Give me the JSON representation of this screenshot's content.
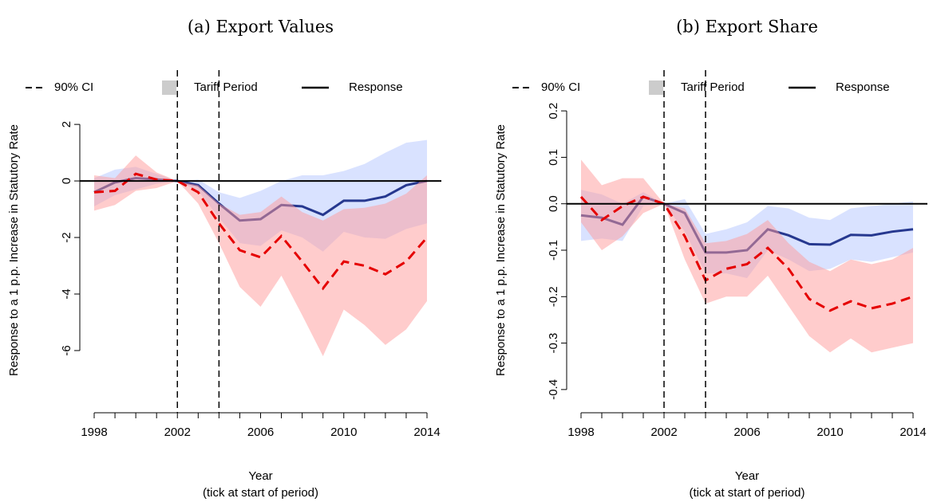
{
  "chart_data": [
    {
      "type": "line",
      "title": "(a) Export Values",
      "ylabel": "Response to a 1 p.p. Increase in Statutory Rate",
      "xlabel": "Year",
      "xlabel_note": "(tick at start of period)",
      "x": [
        1998,
        1999,
        2000,
        2001,
        2002,
        2003,
        2004,
        2005,
        2006,
        2007,
        2008,
        2009,
        2010,
        2011,
        2012,
        2013,
        2014
      ],
      "xlim": [
        1998,
        2014
      ],
      "xticks": [
        1998,
        2002,
        2006,
        2010,
        2014
      ],
      "xminorticks": [
        1998,
        1999,
        2000,
        2001,
        2002,
        2003,
        2004,
        2005,
        2006,
        2007,
        2008,
        2009,
        2010,
        2011,
        2012,
        2013,
        2014
      ],
      "ylim": [
        -8.2,
        3.3
      ],
      "yticks": [
        -6,
        -4,
        -2,
        0,
        2
      ],
      "hline": 0,
      "vlines": [
        2002,
        2004
      ],
      "legend": {
        "position": "top",
        "items": [
          "90% CI",
          "Tariff Period",
          "Response"
        ]
      },
      "series": [
        {
          "color": "#26388f",
          "band_color": "#b3c6ff",
          "dash": false,
          "values": [
            -0.4,
            -0.05,
            0.1,
            0.05,
            0,
            -0.15,
            -0.8,
            -1.4,
            -1.35,
            -0.85,
            -0.9,
            -1.2,
            -0.7,
            -0.7,
            -0.55,
            -0.15,
            0
          ],
          "upper": [
            0.1,
            0.4,
            0.5,
            0.25,
            0,
            0.05,
            -0.4,
            -0.6,
            -0.35,
            0.0,
            0.2,
            0.2,
            0.35,
            0.6,
            1.0,
            1.35,
            1.45
          ],
          "lower": [
            -0.9,
            -0.5,
            -0.3,
            -0.1,
            0,
            -0.35,
            -1.3,
            -2.2,
            -2.3,
            -1.75,
            -2.0,
            -2.5,
            -1.8,
            -2.0,
            -2.05,
            -1.7,
            -1.5
          ]
        },
        {
          "color": "#e50000",
          "band_color": "#ff9999",
          "dash": true,
          "values": [
            -0.4,
            -0.35,
            0.25,
            0.05,
            0,
            -0.4,
            -1.5,
            -2.45,
            -2.7,
            -1.95,
            -2.85,
            -3.8,
            -2.85,
            -3.0,
            -3.3,
            -2.85,
            -2.0
          ],
          "upper": [
            0.2,
            0.1,
            0.9,
            0.3,
            0,
            -0.15,
            -0.8,
            -1.2,
            -1.1,
            -0.55,
            -1.1,
            -1.4,
            -1.0,
            -0.95,
            -0.8,
            -0.45,
            0.2
          ],
          "lower": [
            -1.05,
            -0.85,
            -0.35,
            -0.25,
            0,
            -0.8,
            -2.2,
            -3.75,
            -4.45,
            -3.35,
            -4.75,
            -6.2,
            -4.55,
            -5.1,
            -5.8,
            -5.25,
            -4.25
          ]
        }
      ]
    },
    {
      "type": "line",
      "title": "(b) Export Share",
      "ylabel": "Response to a 1 p.p. Increase in Statutory Rate",
      "xlabel": "Year",
      "xlabel_note": "(tick at start of period)",
      "x": [
        1998,
        1999,
        2000,
        2001,
        2002,
        2003,
        2004,
        2005,
        2006,
        2007,
        2008,
        2009,
        2010,
        2011,
        2012,
        2013,
        2014
      ],
      "xlim": [
        1998,
        2014
      ],
      "xticks": [
        1998,
        2002,
        2006,
        2010,
        2014
      ],
      "xminorticks": [
        1998,
        1999,
        2000,
        2001,
        2002,
        2003,
        2004,
        2005,
        2006,
        2007,
        2008,
        2009,
        2010,
        2011,
        2012,
        2013,
        2014
      ],
      "ylim": [
        -0.45,
        0.25
      ],
      "yticks": [
        -0.4,
        -0.3,
        -0.2,
        -0.1,
        {
          "value": 0,
          "label": "0.0"
        },
        0.1,
        0.2
      ],
      "hline": 0,
      "vlines": [
        2002,
        2004
      ],
      "legend": {
        "position": "top",
        "items": [
          "90% CI",
          "Tariff Period",
          "Response"
        ]
      },
      "series": [
        {
          "color": "#26388f",
          "band_color": "#b3c6ff",
          "dash": false,
          "values": [
            -0.025,
            -0.03,
            -0.045,
            0.015,
            0,
            -0.02,
            -0.105,
            -0.105,
            -0.1,
            -0.055,
            -0.068,
            -0.087,
            -0.088,
            -0.067,
            -0.068,
            -0.06,
            -0.055
          ],
          "upper": [
            0.03,
            0.02,
            0.0,
            0.025,
            0,
            0.01,
            -0.065,
            -0.055,
            -0.04,
            -0.005,
            -0.01,
            -0.03,
            -0.035,
            -0.01,
            -0.005,
            0.0,
            0.005
          ],
          "lower": [
            -0.08,
            -0.075,
            -0.08,
            -0.005,
            0,
            -0.06,
            -0.15,
            -0.15,
            -0.16,
            -0.1,
            -0.12,
            -0.145,
            -0.14,
            -0.12,
            -0.125,
            -0.115,
            -0.105
          ]
        },
        {
          "color": "#e50000",
          "band_color": "#ff9999",
          "dash": true,
          "values": [
            0.015,
            -0.035,
            -0.005,
            0.015,
            0,
            -0.07,
            -0.165,
            -0.14,
            -0.13,
            -0.095,
            -0.14,
            -0.205,
            -0.23,
            -0.21,
            -0.225,
            -0.215,
            -0.2
          ],
          "upper": [
            0.095,
            0.04,
            0.055,
            0.055,
            0,
            -0.01,
            -0.085,
            -0.08,
            -0.065,
            -0.035,
            -0.085,
            -0.125,
            -0.145,
            -0.12,
            -0.13,
            -0.12,
            -0.095
          ],
          "lower": [
            -0.04,
            -0.1,
            -0.07,
            -0.02,
            0,
            -0.12,
            -0.215,
            -0.2,
            -0.2,
            -0.155,
            -0.22,
            -0.285,
            -0.32,
            -0.29,
            -0.32,
            -0.31,
            -0.3
          ]
        }
      ]
    }
  ]
}
